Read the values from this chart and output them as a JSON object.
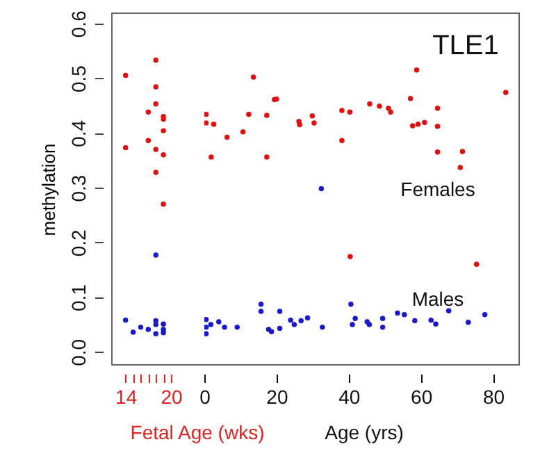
{
  "chart_data": [
    {
      "type": "scatter",
      "ylabel": "methylation",
      "xlabel": "Fetal Age (wks)",
      "xlim": [
        12.1,
        20
      ],
      "ylim": [
        -0.025,
        0.62
      ],
      "xticks": [
        14,
        {
          "value": 15,
          "label": null
        },
        {
          "value": 16,
          "label": null
        },
        {
          "value": 17,
          "label": null
        },
        {
          "value": 18,
          "label": null
        },
        {
          "value": 19,
          "label": null
        },
        20
      ],
      "yticks": [
        {
          "value": 0,
          "label": "0.0"
        },
        {
          "value": 0.1,
          "label": "0.1"
        },
        {
          "value": 0.2,
          "label": "0.2"
        },
        {
          "value": 0.3,
          "label": "0.3"
        },
        {
          "value": 0.4,
          "label": "0.4"
        },
        {
          "value": 0.5,
          "label": "0.5"
        },
        {
          "value": 0.6,
          "label": "0.6"
        }
      ],
      "grid": false,
      "marker": "circle",
      "series": [
        {
          "color": "#dd1111",
          "x": [
            14,
            14,
            17,
            17,
            18,
            18,
            18,
            18,
            18,
            19,
            19,
            19,
            19,
            19
          ],
          "values": [
            0.505,
            0.373,
            0.438,
            0.386,
            0.533,
            0.484,
            0.453,
            0.37,
            0.328,
            0.43,
            0.425,
            0.404,
            0.36,
            0.27
          ]
        },
        {
          "color": "#1a1acc",
          "x": [
            18,
            14,
            15,
            16,
            17,
            18,
            18,
            18,
            19,
            19,
            19
          ],
          "values": [
            0.177,
            0.058,
            0.036,
            0.045,
            0.041,
            0.057,
            0.033,
            0.05,
            0.051,
            0.041,
            0.035
          ]
        }
      ]
    },
    {
      "type": "scatter",
      "xlabel": "Age (yrs)",
      "annotations": [
        "TLE1"
      ],
      "xlim": [
        0,
        87.4
      ],
      "ylim": [
        -0.025,
        0.62
      ],
      "xticks": [
        0,
        20,
        40,
        60,
        80
      ],
      "tick_labels": "x",
      "grid": false,
      "marker": "circle",
      "series": [
        {
          "name": "Females",
          "color": "#dd1111",
          "x": [
            0.5,
            0.5,
            2.6,
            1.9,
            6.3,
            10.7,
            12.3,
            13.6,
            17.3,
            17.3,
            19.4,
            20,
            26.2,
            26.4,
            29.9,
            30.4,
            38.1,
            38.1,
            40.3,
            45.8,
            48.5,
            51,
            51.6,
            57.1,
            58.8,
            57.7,
            59.2,
            61,
            64.6,
            64.6,
            64.6,
            70.9,
            71.5,
            83.5,
            40.4,
            75.4
          ],
          "values": [
            0.434,
            0.418,
            0.416,
            0.356,
            0.392,
            0.402,
            0.434,
            0.502,
            0.432,
            0.356,
            0.461,
            0.462,
            0.421,
            0.415,
            0.431,
            0.418,
            0.441,
            0.386,
            0.438,
            0.453,
            0.449,
            0.445,
            0.438,
            0.463,
            0.515,
            0.413,
            0.416,
            0.419,
            0.445,
            0.412,
            0.365,
            0.337,
            0.366,
            0.474,
            0.174,
            0.16
          ]
        },
        {
          "name": "Males",
          "color": "#1a1acc",
          "x": [
            32.4,
            0.5,
            0.5,
            0.5,
            1.8,
            4,
            5.6,
            9.1,
            15.7,
            15.7,
            17.8,
            18.6,
            20.9,
            20.9,
            23.9,
            24.9,
            26.8,
            28.6,
            32.7,
            40.6,
            41,
            41.8,
            45.1,
            45.7,
            49.4,
            49.4,
            53.5,
            55.4,
            58.3,
            62.8,
            64.1,
            67.7,
            73.1,
            77.7
          ],
          "values": [
            0.298,
            0.059,
            0.033,
            0.045,
            0.05,
            0.055,
            0.045,
            0.045,
            0.087,
            0.074,
            0.041,
            0.037,
            0.074,
            0.043,
            0.058,
            0.05,
            0.057,
            0.062,
            0.045,
            0.087,
            0.05,
            0.061,
            0.055,
            0.05,
            0.061,
            0.045,
            0.071,
            0.068,
            0.057,
            0.058,
            0.051,
            0.075,
            0.054,
            0.068
          ]
        }
      ]
    }
  ]
}
